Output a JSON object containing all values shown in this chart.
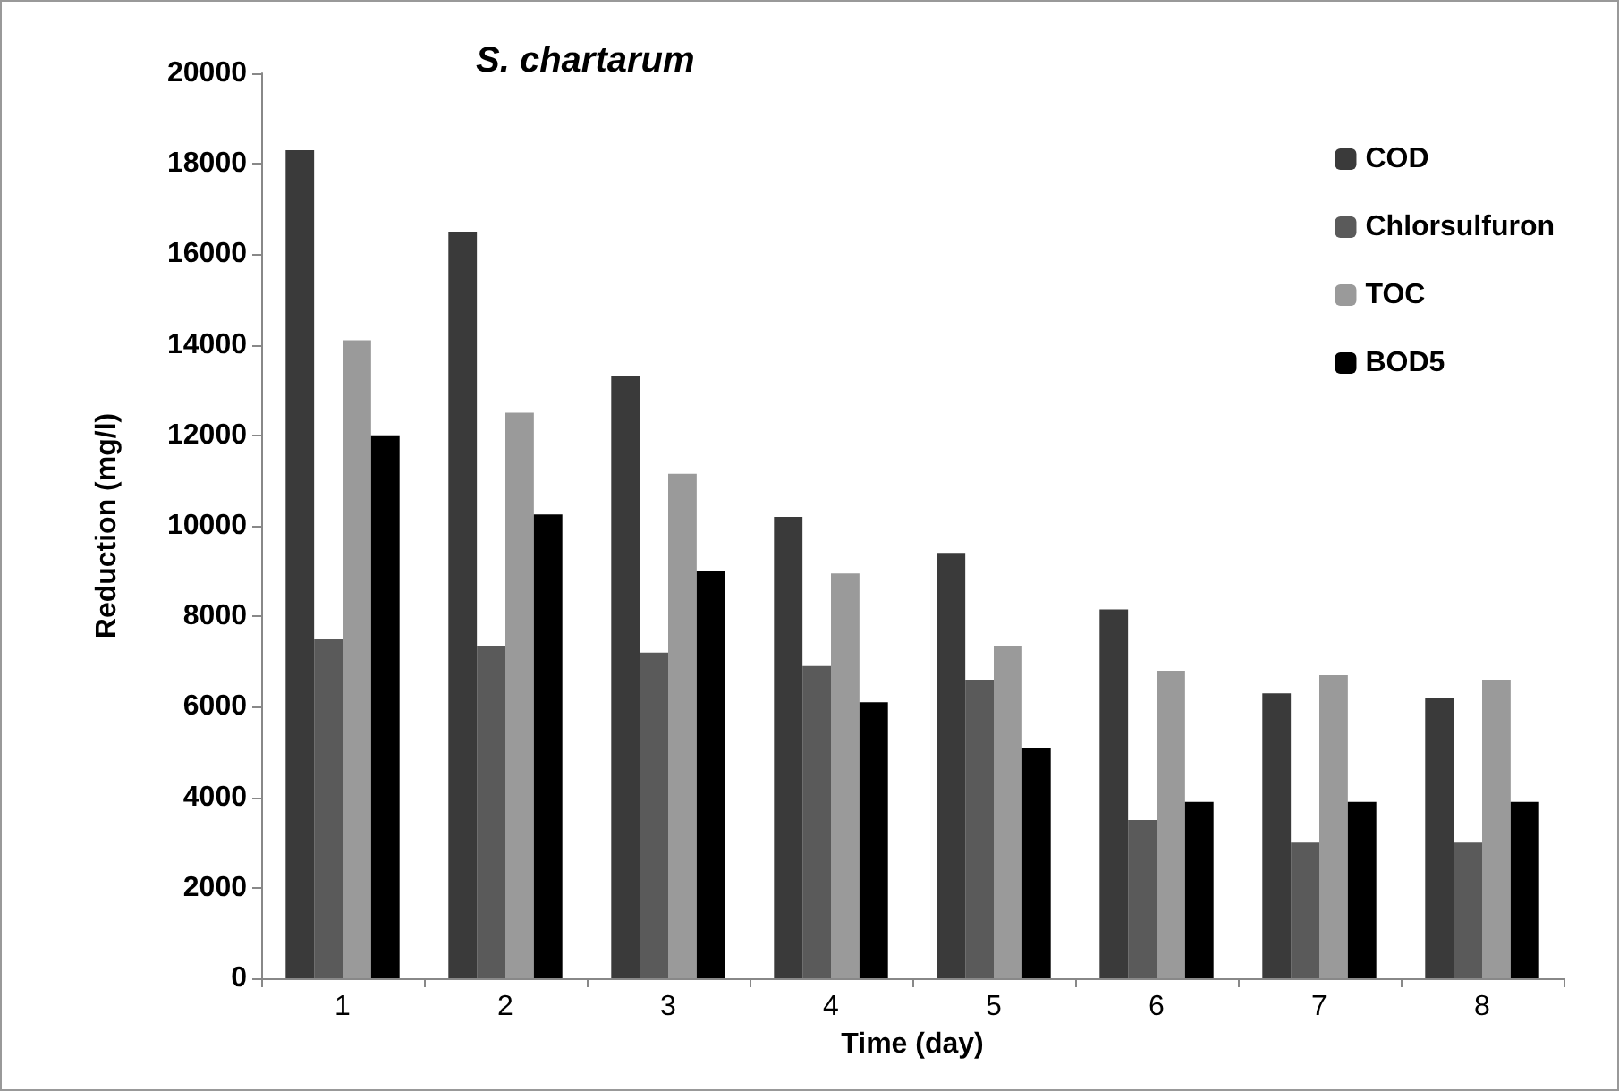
{
  "chart_data": {
    "type": "bar",
    "title": "S. chartarum",
    "xlabel": "Time (day)",
    "ylabel": "Reduction (mg/l)",
    "categories": [
      "1",
      "2",
      "3",
      "4",
      "5",
      "6",
      "7",
      "8"
    ],
    "series": [
      {
        "name": "COD",
        "color": "#3a3a3a",
        "values": [
          18300,
          16500,
          13300,
          10200,
          9400,
          8150,
          6300,
          6200
        ]
      },
      {
        "name": "Chlorsulfuron",
        "color": "#5a5a5a",
        "values": [
          7500,
          7350,
          7200,
          6900,
          6600,
          3500,
          3000,
          3000
        ]
      },
      {
        "name": "TOC",
        "color": "#9a9a9a",
        "values": [
          14100,
          12500,
          11150,
          8950,
          7350,
          6800,
          6700,
          6600
        ]
      },
      {
        "name": "BOD5",
        "color": "#000000",
        "values": [
          12000,
          10250,
          9000,
          6100,
          5100,
          3900,
          3900,
          3900
        ]
      }
    ],
    "ylim": [
      0,
      20000
    ],
    "yticks": [
      0,
      2000,
      4000,
      6000,
      8000,
      10000,
      12000,
      14000,
      16000,
      18000,
      20000
    ],
    "grid": false,
    "legend": "top right"
  }
}
